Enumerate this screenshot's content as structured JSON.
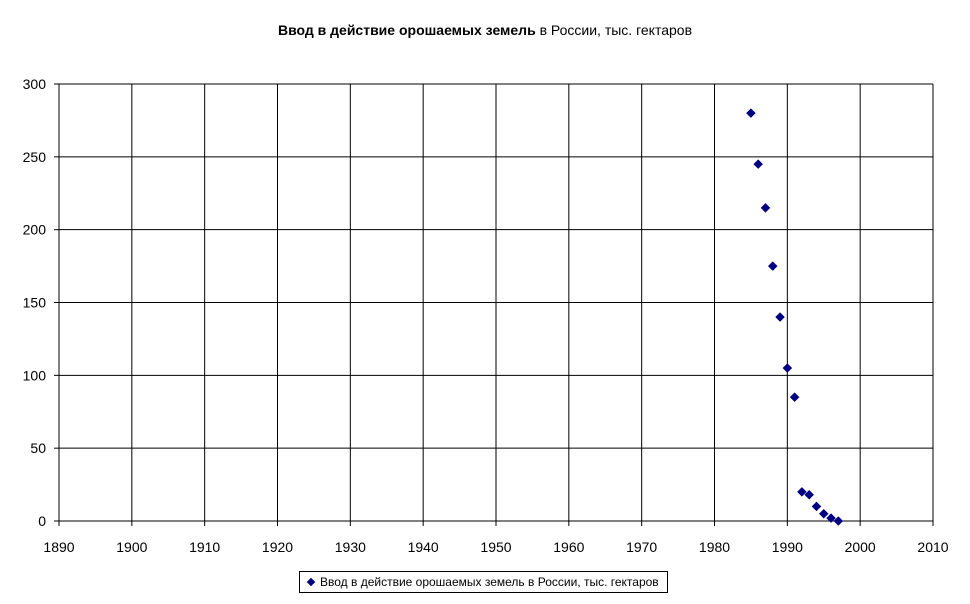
{
  "chart_data": {
    "type": "scatter",
    "title_bold": "Ввод в действие орошаемых земель",
    "title_rest": " в России, тыс. гектаров",
    "xlabel": "",
    "ylabel": "",
    "xlim": [
      1890,
      2010
    ],
    "ylim": [
      0,
      300
    ],
    "xticks": [
      1890,
      1900,
      1910,
      1920,
      1930,
      1940,
      1950,
      1960,
      1970,
      1980,
      1990,
      2000,
      2010
    ],
    "yticks": [
      0,
      50,
      100,
      150,
      200,
      250,
      300
    ],
    "grid": true,
    "legend_position": "bottom",
    "series": [
      {
        "name": "Ввод в действие орошаемых земель в России, тыс. гектаров",
        "color": "#000080",
        "marker": "diamond",
        "points": [
          {
            "x": 1985,
            "y": 280
          },
          {
            "x": 1986,
            "y": 245
          },
          {
            "x": 1987,
            "y": 215
          },
          {
            "x": 1988,
            "y": 175
          },
          {
            "x": 1989,
            "y": 140
          },
          {
            "x": 1990,
            "y": 105
          },
          {
            "x": 1991,
            "y": 85
          },
          {
            "x": 1992,
            "y": 20
          },
          {
            "x": 1993,
            "y": 18
          },
          {
            "x": 1994,
            "y": 10
          },
          {
            "x": 1995,
            "y": 5
          },
          {
            "x": 1996,
            "y": 2
          },
          {
            "x": 1997,
            "y": 0
          }
        ]
      }
    ]
  }
}
